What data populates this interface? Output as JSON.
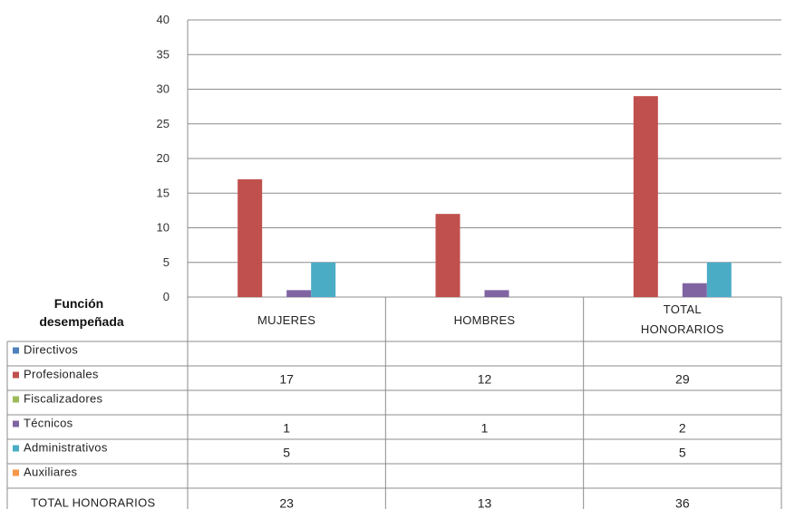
{
  "chart_data": {
    "type": "bar",
    "row_header": "Función desempeñada",
    "categories": [
      "MUJERES",
      "HOMBRES",
      "TOTAL HONORARIOS"
    ],
    "ylim": [
      0,
      40
    ],
    "yticks": [
      0,
      5,
      10,
      15,
      20,
      25,
      30,
      35,
      40
    ],
    "grid": true,
    "legend_placement": "left, in data table",
    "series": [
      {
        "name": "Directivos",
        "color": "#4F81BD",
        "values": [
          null,
          null,
          null
        ]
      },
      {
        "name": "Profesionales",
        "color": "#C0504D",
        "values": [
          17,
          12,
          29
        ]
      },
      {
        "name": "Fiscalizadores",
        "color": "#9BBB59",
        "values": [
          null,
          null,
          null
        ]
      },
      {
        "name": "Técnicos",
        "color": "#8064A2",
        "values": [
          1,
          1,
          2
        ]
      },
      {
        "name": "Administrativos",
        "color": "#4BACC6",
        "values": [
          5,
          null,
          5
        ]
      },
      {
        "name": "Auxiliares",
        "color": "#F79646",
        "values": [
          null,
          null,
          null
        ]
      }
    ],
    "total_row": {
      "label": "TOTAL HONORARIOS",
      "values": [
        23,
        13,
        36
      ]
    }
  }
}
